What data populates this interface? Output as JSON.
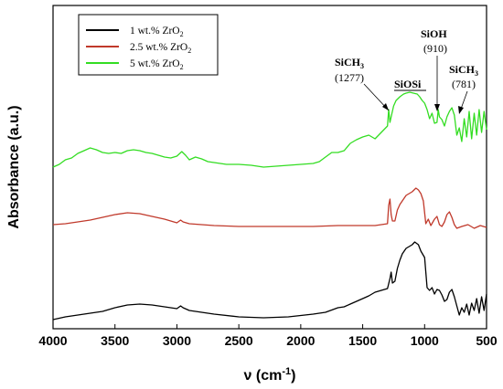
{
  "chart_data": {
    "type": "line",
    "title": "",
    "xlabel": "ν (cm",
    "xlabel_sup": "-1",
    "xlabel_suffix": ")",
    "ylabel": "Absorbance (a.u.)",
    "xlim": [
      4000,
      500
    ],
    "x_reversed": true,
    "y_ticks_shown": false,
    "grid": false,
    "legend_position": "top-left",
    "x_ticks": [
      4000,
      3500,
      3000,
      2500,
      2000,
      1500,
      1000,
      500
    ],
    "x_tick_labels": [
      "4000",
      "3500",
      "3000",
      "2500",
      "2000",
      "1500",
      "1000",
      "500"
    ],
    "series": [
      {
        "name": "1 wt.% ZrO",
        "name_sub": "2",
        "color": "#000000",
        "points": [
          [
            4000,
            10
          ],
          [
            3900,
            13
          ],
          [
            3800,
            15
          ],
          [
            3700,
            17
          ],
          [
            3600,
            19
          ],
          [
            3500,
            23
          ],
          [
            3400,
            26
          ],
          [
            3300,
            27
          ],
          [
            3200,
            26
          ],
          [
            3100,
            24
          ],
          [
            3000,
            22
          ],
          [
            2970,
            25
          ],
          [
            2950,
            23
          ],
          [
            2900,
            20
          ],
          [
            2800,
            18
          ],
          [
            2700,
            16
          ],
          [
            2500,
            13
          ],
          [
            2300,
            12
          ],
          [
            2100,
            13
          ],
          [
            1900,
            16
          ],
          [
            1800,
            18
          ],
          [
            1700,
            23
          ],
          [
            1650,
            24
          ],
          [
            1600,
            27
          ],
          [
            1550,
            30
          ],
          [
            1500,
            33
          ],
          [
            1450,
            36
          ],
          [
            1400,
            40
          ],
          [
            1350,
            42
          ],
          [
            1300,
            44
          ],
          [
            1280,
            55
          ],
          [
            1270,
            62
          ],
          [
            1260,
            50
          ],
          [
            1240,
            52
          ],
          [
            1220,
            66
          ],
          [
            1200,
            75
          ],
          [
            1180,
            82
          ],
          [
            1150,
            88
          ],
          [
            1100,
            92
          ],
          [
            1080,
            95
          ],
          [
            1050,
            92
          ],
          [
            1030,
            85
          ],
          [
            1000,
            78
          ],
          [
            980,
            45
          ],
          [
            960,
            42
          ],
          [
            940,
            45
          ],
          [
            920,
            38
          ],
          [
            900,
            43
          ],
          [
            880,
            42
          ],
          [
            860,
            37
          ],
          [
            840,
            30
          ],
          [
            820,
            32
          ],
          [
            800,
            40
          ],
          [
            780,
            43
          ],
          [
            760,
            35
          ],
          [
            740,
            25
          ],
          [
            720,
            15
          ],
          [
            700,
            23
          ],
          [
            680,
            18
          ],
          [
            660,
            27
          ],
          [
            640,
            15
          ],
          [
            620,
            28
          ],
          [
            600,
            20
          ],
          [
            580,
            33
          ],
          [
            560,
            17
          ],
          [
            540,
            35
          ],
          [
            520,
            20
          ],
          [
            500,
            38
          ]
        ]
      },
      {
        "name": "2.5 wt.% ZrO",
        "name_sub": "2",
        "color": "#c0392b",
        "points": [
          [
            4000,
            114
          ],
          [
            3900,
            115
          ],
          [
            3800,
            117
          ],
          [
            3700,
            119
          ],
          [
            3600,
            122
          ],
          [
            3500,
            125
          ],
          [
            3400,
            127
          ],
          [
            3300,
            126
          ],
          [
            3200,
            123
          ],
          [
            3100,
            120
          ],
          [
            3000,
            116
          ],
          [
            2970,
            119
          ],
          [
            2950,
            117
          ],
          [
            2900,
            115
          ],
          [
            2700,
            113
          ],
          [
            2500,
            112
          ],
          [
            2300,
            112
          ],
          [
            2100,
            112
          ],
          [
            1900,
            112
          ],
          [
            1700,
            113
          ],
          [
            1500,
            113
          ],
          [
            1400,
            113
          ],
          [
            1350,
            114
          ],
          [
            1300,
            115
          ],
          [
            1290,
            135
          ],
          [
            1280,
            142
          ],
          [
            1270,
            125
          ],
          [
            1260,
            118
          ],
          [
            1240,
            118
          ],
          [
            1220,
            130
          ],
          [
            1200,
            136
          ],
          [
            1180,
            140
          ],
          [
            1150,
            146
          ],
          [
            1100,
            150
          ],
          [
            1070,
            154
          ],
          [
            1050,
            152
          ],
          [
            1030,
            148
          ],
          [
            1010,
            140
          ],
          [
            990,
            115
          ],
          [
            970,
            120
          ],
          [
            950,
            113
          ],
          [
            920,
            120
          ],
          [
            900,
            123
          ],
          [
            880,
            114
          ],
          [
            860,
            112
          ],
          [
            840,
            117
          ],
          [
            820,
            125
          ],
          [
            800,
            128
          ],
          [
            780,
            122
          ],
          [
            760,
            114
          ],
          [
            740,
            110
          ],
          [
            700,
            112
          ],
          [
            650,
            114
          ],
          [
            600,
            110
          ],
          [
            550,
            113
          ],
          [
            500,
            111
          ]
        ]
      },
      {
        "name": "5 wt.% ZrO",
        "name_sub": "2",
        "color": "#33dd22",
        "points": [
          [
            4000,
            177
          ],
          [
            3950,
            180
          ],
          [
            3900,
            185
          ],
          [
            3850,
            187
          ],
          [
            3800,
            192
          ],
          [
            3750,
            195
          ],
          [
            3700,
            198
          ],
          [
            3650,
            196
          ],
          [
            3600,
            193
          ],
          [
            3550,
            192
          ],
          [
            3500,
            193
          ],
          [
            3450,
            192
          ],
          [
            3400,
            195
          ],
          [
            3350,
            196
          ],
          [
            3300,
            195
          ],
          [
            3250,
            193
          ],
          [
            3200,
            192
          ],
          [
            3150,
            190
          ],
          [
            3100,
            188
          ],
          [
            3050,
            187
          ],
          [
            3000,
            189
          ],
          [
            2960,
            194
          ],
          [
            2930,
            190
          ],
          [
            2900,
            185
          ],
          [
            2850,
            188
          ],
          [
            2800,
            186
          ],
          [
            2750,
            183
          ],
          [
            2700,
            182
          ],
          [
            2600,
            180
          ],
          [
            2500,
            180
          ],
          [
            2400,
            179
          ],
          [
            2300,
            177
          ],
          [
            2200,
            178
          ],
          [
            2100,
            179
          ],
          [
            2000,
            180
          ],
          [
            1900,
            181
          ],
          [
            1850,
            183
          ],
          [
            1800,
            188
          ],
          [
            1750,
            193
          ],
          [
            1700,
            193
          ],
          [
            1650,
            195
          ],
          [
            1600,
            203
          ],
          [
            1550,
            207
          ],
          [
            1500,
            210
          ],
          [
            1450,
            212
          ],
          [
            1400,
            208
          ],
          [
            1350,
            215
          ],
          [
            1300,
            222
          ],
          [
            1290,
            240
          ],
          [
            1280,
            226
          ],
          [
            1270,
            232
          ],
          [
            1250,
            244
          ],
          [
            1230,
            250
          ],
          [
            1200,
            254
          ],
          [
            1170,
            257
          ],
          [
            1150,
            258
          ],
          [
            1120,
            259
          ],
          [
            1090,
            258
          ],
          [
            1060,
            257
          ],
          [
            1040,
            254
          ],
          [
            1020,
            250
          ],
          [
            1000,
            247
          ],
          [
            980,
            240
          ],
          [
            960,
            230
          ],
          [
            940,
            236
          ],
          [
            920,
            225
          ],
          [
            900,
            226
          ],
          [
            890,
            240
          ],
          [
            880,
            232
          ],
          [
            860,
            229
          ],
          [
            840,
            222
          ],
          [
            820,
            232
          ],
          [
            800,
            238
          ],
          [
            780,
            242
          ],
          [
            760,
            234
          ],
          [
            740,
            212
          ],
          [
            720,
            220
          ],
          [
            700,
            205
          ],
          [
            680,
            230
          ],
          [
            660,
            210
          ],
          [
            640,
            238
          ],
          [
            620,
            208
          ],
          [
            600,
            236
          ],
          [
            580,
            212
          ],
          [
            560,
            240
          ],
          [
            540,
            215
          ],
          [
            520,
            238
          ],
          [
            500,
            218
          ]
        ]
      }
    ],
    "annotations": [
      {
        "label": "SiCH",
        "sub": "3",
        "value": "(1277)",
        "bold": true
      },
      {
        "label": "SiOSi",
        "underline": true
      },
      {
        "label": "SiOH",
        "value": "(910)"
      },
      {
        "label": "SiCH",
        "sub": "3",
        "value": "(781)"
      }
    ]
  }
}
